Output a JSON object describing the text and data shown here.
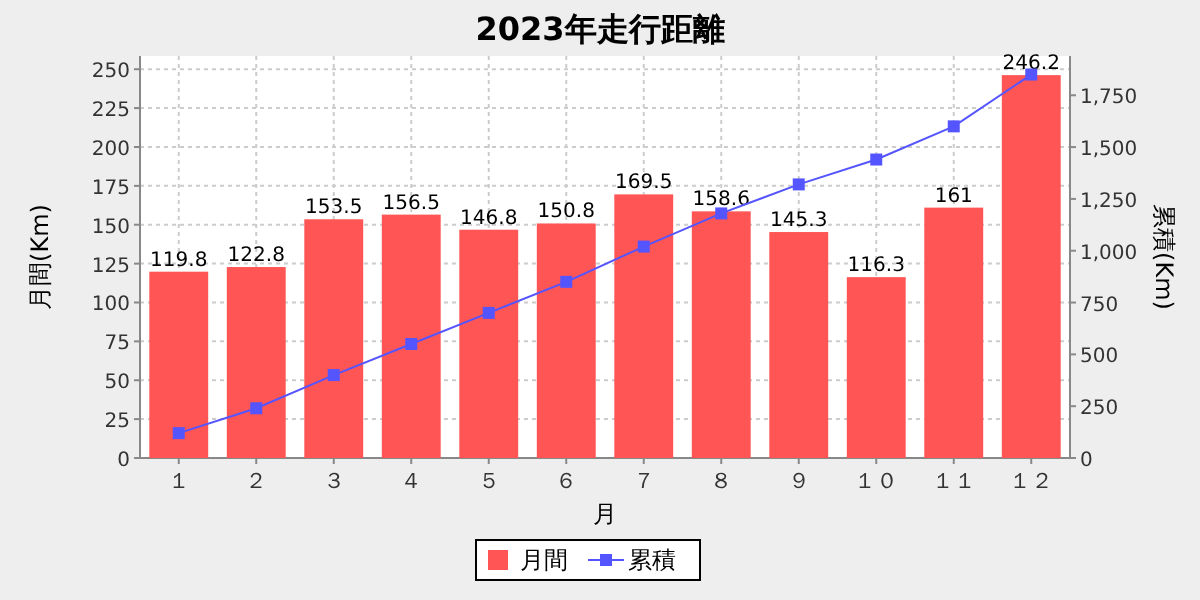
{
  "chart_data": {
    "type": "bar",
    "title": "2023年走行距離",
    "xlabel": "月",
    "ylabel": "月間(Km)",
    "y2label": "累積(Km)",
    "categories": [
      "１",
      "２",
      "３",
      "４",
      "５",
      "６",
      "７",
      "８",
      "９",
      "１０",
      "１１",
      "１２"
    ],
    "series": [
      {
        "name": "月間",
        "color": "#ff5555",
        "values": [
          119.8,
          122.8,
          153.5,
          156.5,
          146.8,
          150.8,
          169.5,
          158.6,
          145.3,
          116.3,
          161,
          246.2
        ],
        "value_labels": [
          "119.8",
          "122.8",
          "153.5",
          "156.5",
          "146.8",
          "150.8",
          "169.5",
          "158.6",
          "145.3",
          "116.3",
          "161",
          "246.2"
        ]
      },
      {
        "name": "累積",
        "type": "line",
        "axis": "y2",
        "color": "#5555ff",
        "marker": "square",
        "values": [
          120,
          240,
          400,
          550,
          700,
          850,
          1020,
          1180,
          1320,
          1440,
          1600,
          1850
        ]
      }
    ],
    "ylim": [
      0,
      258.5
    ],
    "yticks": [
      0,
      25,
      50,
      75,
      100,
      125,
      150,
      175,
      200,
      225,
      250
    ],
    "y2lim": [
      0,
      1939.5
    ],
    "y2ticks": [
      {
        "value": 0,
        "label": "0"
      },
      {
        "value": 250,
        "label": "250"
      },
      {
        "value": 500,
        "label": "500"
      },
      {
        "value": 750,
        "label": "750"
      },
      {
        "value": 1000,
        "label": "1,000"
      },
      {
        "value": 1250,
        "label": "1,250"
      },
      {
        "value": 1500,
        "label": "1,500"
      },
      {
        "value": 1750,
        "label": "1,750"
      }
    ],
    "grid": true,
    "legend": "bottom"
  }
}
